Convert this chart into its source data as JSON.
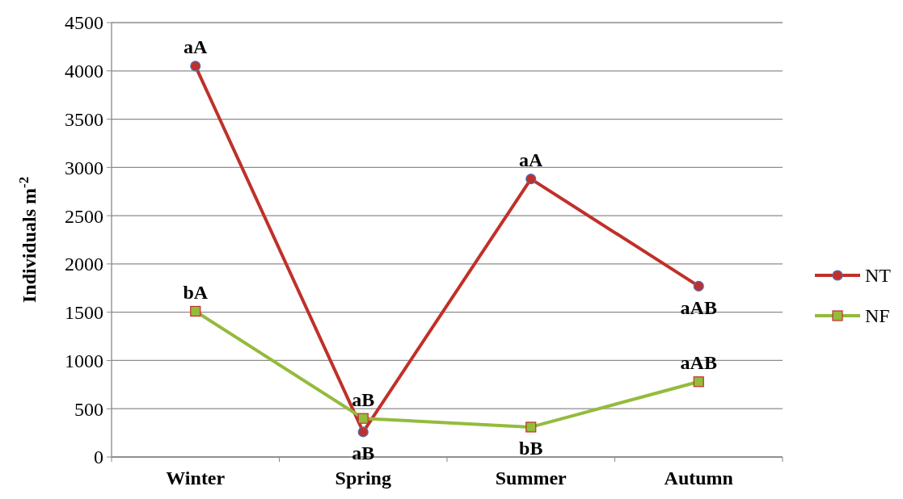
{
  "chart_data": {
    "type": "line",
    "ylabel": "Individuals m$^{-2}$",
    "categories": [
      "Winter",
      "Spring",
      "Summer",
      "Autumn"
    ],
    "series": [
      {
        "name": "NT",
        "color": "#c0302a",
        "marker": "circle",
        "values": [
          4050,
          260,
          2880,
          1770
        ]
      },
      {
        "name": "NF",
        "color": "#94bb3c",
        "marker": "square",
        "values": [
          1510,
          400,
          310,
          780
        ]
      }
    ],
    "ylim": [
      0,
      4500
    ],
    "yticks": [
      0,
      500,
      1000,
      1500,
      2000,
      2500,
      3000,
      3500,
      4000,
      4500
    ],
    "grid": "y",
    "legend": "right",
    "annotations": [
      {
        "text": "aA",
        "x": "Winter",
        "y": 4050
      },
      {
        "text": "bA",
        "x": "Winter",
        "y": 1510
      },
      {
        "text": "aB",
        "x": "Spring",
        "y": 400
      },
      {
        "text": "aB",
        "x": "Spring",
        "y": 260
      },
      {
        "text": "aA",
        "x": "Summer",
        "y": 2880
      },
      {
        "text": "bB",
        "x": "Summer",
        "y": 310
      },
      {
        "text": "aAB",
        "x": "Autumn",
        "y": 1770
      },
      {
        "text": "aAB",
        "x": "Autumn",
        "y": 780
      }
    ]
  }
}
